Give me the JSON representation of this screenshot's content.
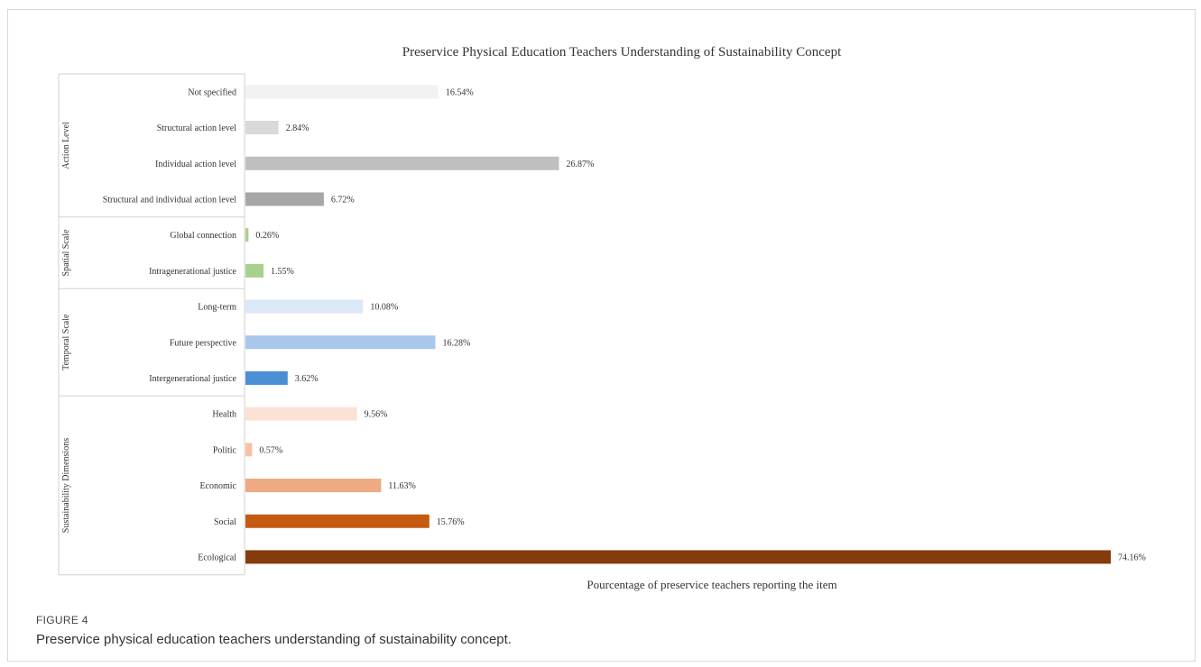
{
  "chart_data": {
    "type": "bar",
    "orientation": "horizontal",
    "title": "Preservice Physical Education Teachers Understanding of Sustainability Concept",
    "xlabel": "Pourcentage of preservice teachers reporting the item",
    "ylabel": "",
    "xlim": [
      0,
      74.16
    ],
    "grid": false,
    "legend": "none",
    "groups": [
      {
        "name": "Action Level",
        "items": [
          {
            "label": "Not specified",
            "value": 16.54,
            "value_label": "16.54%",
            "color": "#f2f2f2"
          },
          {
            "label": "Structural action level",
            "value": 2.84,
            "value_label": "2.84%",
            "color": "#d9d9d9"
          },
          {
            "label": "Individual action level",
            "value": 26.87,
            "value_label": "26.87%",
            "color": "#bfbfbf"
          },
          {
            "label": "Structural and individual action level",
            "value": 6.72,
            "value_label": "6.72%",
            "color": "#a6a6a6"
          }
        ]
      },
      {
        "name": "Spatial Scale",
        "items": [
          {
            "label": "Global connection",
            "value": 0.26,
            "value_label": "0.26%",
            "color": "#a9d18e"
          },
          {
            "label": "Intragenerational justice",
            "value": 1.55,
            "value_label": "1.55%",
            "color": "#a9d18e"
          }
        ]
      },
      {
        "name": "Temporal Scale",
        "items": [
          {
            "label": "Long-term",
            "value": 10.08,
            "value_label": "10.08%",
            "color": "#dae8f7"
          },
          {
            "label": "Future perspective",
            "value": 16.28,
            "value_label": "16.28%",
            "color": "#a8c8eb"
          },
          {
            "label": "Intergenerational justice",
            "value": 3.62,
            "value_label": "3.62%",
            "color": "#4a8fd4"
          }
        ]
      },
      {
        "name": "Sustainability Dimensions",
        "items": [
          {
            "label": "Health",
            "value": 9.56,
            "value_label": "9.56%",
            "color": "#fbe2d5"
          },
          {
            "label": "Politic",
            "value": 0.57,
            "value_label": "0.57%",
            "color": "#f7c2a3"
          },
          {
            "label": "Economic",
            "value": 11.63,
            "value_label": "11.63%",
            "color": "#eeaa82"
          },
          {
            "label": "Social",
            "value": 15.76,
            "value_label": "15.76%",
            "color": "#c55a11"
          },
          {
            "label": "Ecological",
            "value": 74.16,
            "value_label": "74.16%",
            "color": "#843c0c"
          }
        ]
      }
    ]
  },
  "figure": {
    "label": "FIGURE 4",
    "caption": "Preservice physical education teachers understanding of sustainability concept."
  }
}
